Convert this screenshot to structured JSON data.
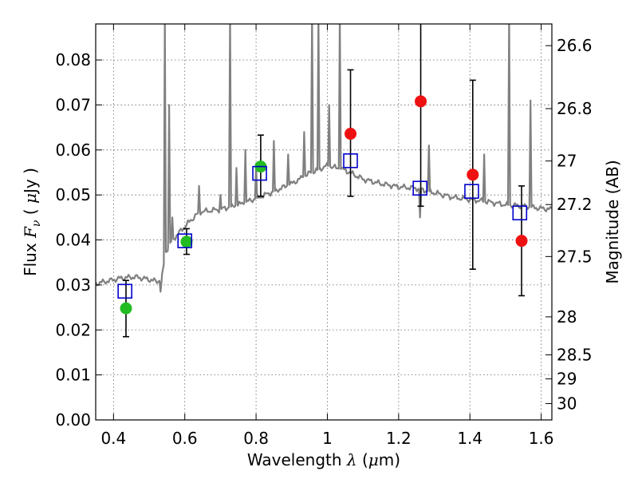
{
  "chart_data": {
    "type": "scatter",
    "xlabel": "Wavelength",
    "xlabel_symbol": "λ",
    "xlabel_unit_open": "(",
    "xlabel_unit_mu": "μ",
    "xlabel_unit_rest": "m)",
    "ylabel": "Flux",
    "ylabel_symbol": "F",
    "ylabel_sub": "ν",
    "ylabel_unit_open": "(",
    "ylabel_unit_mu": "μ",
    "ylabel_unit_rest": "Jy )",
    "y2label": "Magnitude (AB)",
    "xlim": [
      0.35,
      1.63
    ],
    "ylim": [
      0.0,
      0.088
    ],
    "grid": true,
    "x_ticks": [
      {
        "v": 0.4,
        "label": "0.4"
      },
      {
        "v": 0.6,
        "label": "0.6"
      },
      {
        "v": 0.8,
        "label": "0.8"
      },
      {
        "v": 1.0,
        "label": "1"
      },
      {
        "v": 1.2,
        "label": "1.2"
      },
      {
        "v": 1.4,
        "label": "1.4"
      },
      {
        "v": 1.6,
        "label": "1.6"
      }
    ],
    "y_ticks": [
      {
        "v": 0.0,
        "label": "0.00"
      },
      {
        "v": 0.01,
        "label": "0.01"
      },
      {
        "v": 0.02,
        "label": "0.02"
      },
      {
        "v": 0.03,
        "label": "0.03"
      },
      {
        "v": 0.04,
        "label": "0.04"
      },
      {
        "v": 0.05,
        "label": "0.05"
      },
      {
        "v": 0.06,
        "label": "0.06"
      },
      {
        "v": 0.07,
        "label": "0.07"
      },
      {
        "v": 0.08,
        "label": "0.08"
      }
    ],
    "mag_ticks": [
      {
        "mag": 26.6,
        "label": "26.6"
      },
      {
        "mag": 26.8,
        "label": "26.8"
      },
      {
        "mag": 27.0,
        "label": "27"
      },
      {
        "mag": 27.2,
        "label": "27.2"
      },
      {
        "mag": 27.5,
        "label": "27.5"
      },
      {
        "mag": 28.0,
        "label": "28"
      },
      {
        "mag": 28.5,
        "label": "28.5"
      },
      {
        "mag": 29.0,
        "label": "29"
      },
      {
        "mag": 30.0,
        "label": "30"
      }
    ],
    "colors": {
      "spectrum": "#808080",
      "green": "#22bb22",
      "red": "#ee1111",
      "model": "#0000cc",
      "errorbar": "#000000",
      "grid": "#666666"
    },
    "spectrum": {
      "continuum": [
        [
          0.35,
          0.0303
        ],
        [
          0.38,
          0.0308
        ],
        [
          0.42,
          0.0315
        ],
        [
          0.46,
          0.0318
        ],
        [
          0.5,
          0.0312
        ],
        [
          0.52,
          0.0308
        ],
        [
          0.535,
          0.031
        ],
        [
          0.545,
          0.037
        ],
        [
          0.56,
          0.0395
        ],
        [
          0.6,
          0.043
        ],
        [
          0.64,
          0.0462
        ],
        [
          0.7,
          0.0468
        ],
        [
          0.75,
          0.0478
        ],
        [
          0.8,
          0.0492
        ],
        [
          0.85,
          0.0508
        ],
        [
          0.9,
          0.0525
        ],
        [
          0.95,
          0.0548
        ],
        [
          1.0,
          0.0565
        ],
        [
          1.05,
          0.0555
        ],
        [
          1.1,
          0.0535
        ],
        [
          1.15,
          0.0525
        ],
        [
          1.2,
          0.0518
        ],
        [
          1.25,
          0.0515
        ],
        [
          1.3,
          0.0505
        ],
        [
          1.35,
          0.0495
        ],
        [
          1.4,
          0.049
        ],
        [
          1.45,
          0.0485
        ],
        [
          1.5,
          0.0478
        ],
        [
          1.55,
          0.0475
        ],
        [
          1.6,
          0.047
        ],
        [
          1.63,
          0.0468
        ]
      ],
      "lines": [
        {
          "x": 0.532,
          "peak": 0.0285
        },
        {
          "x": 0.544,
          "peak": 0.09
        },
        {
          "x": 0.556,
          "peak": 0.07
        },
        {
          "x": 0.565,
          "peak": 0.045
        },
        {
          "x": 0.64,
          "peak": 0.052
        },
        {
          "x": 0.7,
          "peak": 0.05
        },
        {
          "x": 0.727,
          "peak": 0.09
        },
        {
          "x": 0.745,
          "peak": 0.056
        },
        {
          "x": 0.77,
          "peak": 0.06
        },
        {
          "x": 0.8,
          "peak": 0.057
        },
        {
          "x": 0.85,
          "peak": 0.062
        },
        {
          "x": 0.89,
          "peak": 0.059
        },
        {
          "x": 0.935,
          "peak": 0.064
        },
        {
          "x": 0.957,
          "peak": 0.09
        },
        {
          "x": 0.975,
          "peak": 0.09
        },
        {
          "x": 1.005,
          "peak": 0.07
        },
        {
          "x": 1.035,
          "peak": 0.09
        },
        {
          "x": 1.26,
          "peak": 0.045
        },
        {
          "x": 1.285,
          "peak": 0.061
        },
        {
          "x": 1.44,
          "peak": 0.059
        },
        {
          "x": 1.51,
          "peak": 0.09
        },
        {
          "x": 1.57,
          "peak": 0.071
        }
      ]
    },
    "series": [
      {
        "marker": "filled-circle",
        "color": "green",
        "points": [
          {
            "x": 0.435,
            "y": 0.0248,
            "yerr_low": 0.0185,
            "yerr_high": 0.031
          },
          {
            "x": 0.605,
            "y": 0.0396,
            "yerr_low": 0.0368,
            "yerr_high": 0.0425
          },
          {
            "x": 0.813,
            "y": 0.0563,
            "yerr_low": 0.0497,
            "yerr_high": 0.0633
          }
        ]
      },
      {
        "marker": "filled-circle",
        "color": "red",
        "points": [
          {
            "x": 1.065,
            "y": 0.0636,
            "yerr_low": 0.0497,
            "yerr_high": 0.0778
          },
          {
            "x": 1.262,
            "y": 0.0708,
            "yerr_low": 0.0475,
            "yerr_high": 0.09
          },
          {
            "x": 1.408,
            "y": 0.0545,
            "yerr_low": 0.0335,
            "yerr_high": 0.0755
          },
          {
            "x": 1.545,
            "y": 0.0398,
            "yerr_low": 0.0276,
            "yerr_high": 0.052
          }
        ]
      },
      {
        "marker": "open-square",
        "color": "model",
        "points": [
          {
            "x": 0.432,
            "y": 0.0286
          },
          {
            "x": 0.6,
            "y": 0.0398
          },
          {
            "x": 0.81,
            "y": 0.0548
          },
          {
            "x": 1.065,
            "y": 0.0576
          },
          {
            "x": 1.26,
            "y": 0.0515
          },
          {
            "x": 1.405,
            "y": 0.0508
          },
          {
            "x": 1.54,
            "y": 0.046
          }
        ]
      }
    ]
  }
}
